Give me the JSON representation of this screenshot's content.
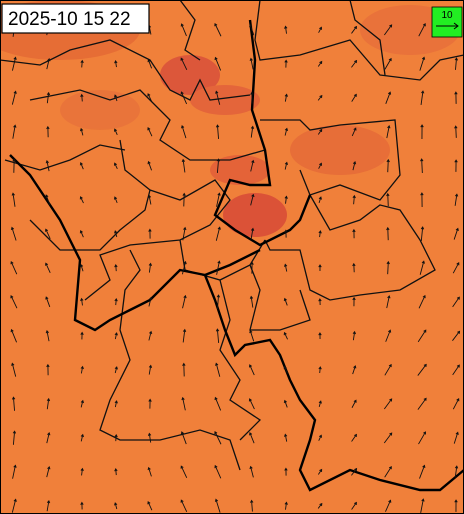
{
  "header": {
    "timestamp": "2025-10 15 22"
  },
  "legend": {
    "label": "10"
  }
}
